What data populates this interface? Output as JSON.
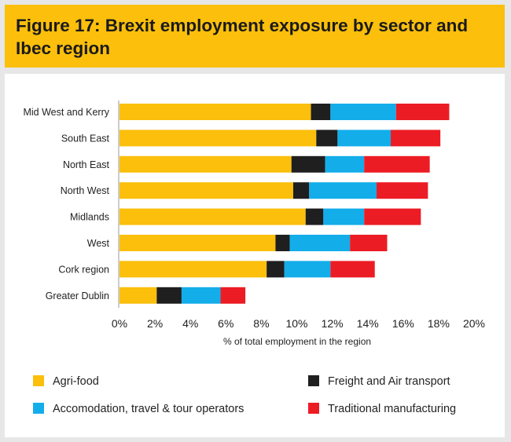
{
  "figure": {
    "title": "Figure 17: Brexit employment exposure by sector and Ibec region"
  },
  "colors": {
    "header": "#fbbf0c",
    "Agri-food": "#fbbf0c",
    "Freight and Air transport": "#1f1f1f",
    "Accomodation, travel & tour operators": "#13adea",
    "Traditional manufacturing": "#ec1c24"
  },
  "chart_data": {
    "type": "bar",
    "orientation": "horizontal",
    "stacked": true,
    "title": "Figure 17: Brexit employment exposure by sector and Ibec region",
    "xlabel": "% of total employment in the region",
    "ylabel": "",
    "xlim": [
      0,
      20
    ],
    "x_ticks": [
      "0%",
      "2%",
      "4%",
      "6%",
      "8%",
      "10%",
      "12%",
      "14%",
      "16%",
      "18%",
      "20%"
    ],
    "categories": [
      "Mid West and Kerry",
      "South East",
      "North East",
      "North West",
      "Midlands",
      "West",
      "Cork region",
      "Greater Dublin"
    ],
    "series": [
      {
        "name": "Agri-food",
        "values": [
          10.8,
          11.1,
          9.7,
          9.8,
          10.5,
          8.8,
          8.3,
          2.1
        ]
      },
      {
        "name": "Freight and Air transport",
        "values": [
          1.1,
          1.2,
          1.9,
          0.9,
          1.0,
          0.8,
          1.0,
          1.4
        ]
      },
      {
        "name": "Accomodation, travel & tour operators",
        "values": [
          3.7,
          3.0,
          2.2,
          3.8,
          2.3,
          3.4,
          2.6,
          2.2
        ]
      },
      {
        "name": "Traditional manufacturing",
        "values": [
          3.0,
          2.8,
          3.7,
          2.9,
          3.2,
          2.1,
          2.5,
          1.4
        ]
      }
    ],
    "legend": {
      "placement": "bottom",
      "entries": [
        "Agri-food",
        "Freight and Air transport",
        "Accomodation, travel & tour operators",
        "Traditional manufacturing"
      ]
    }
  }
}
